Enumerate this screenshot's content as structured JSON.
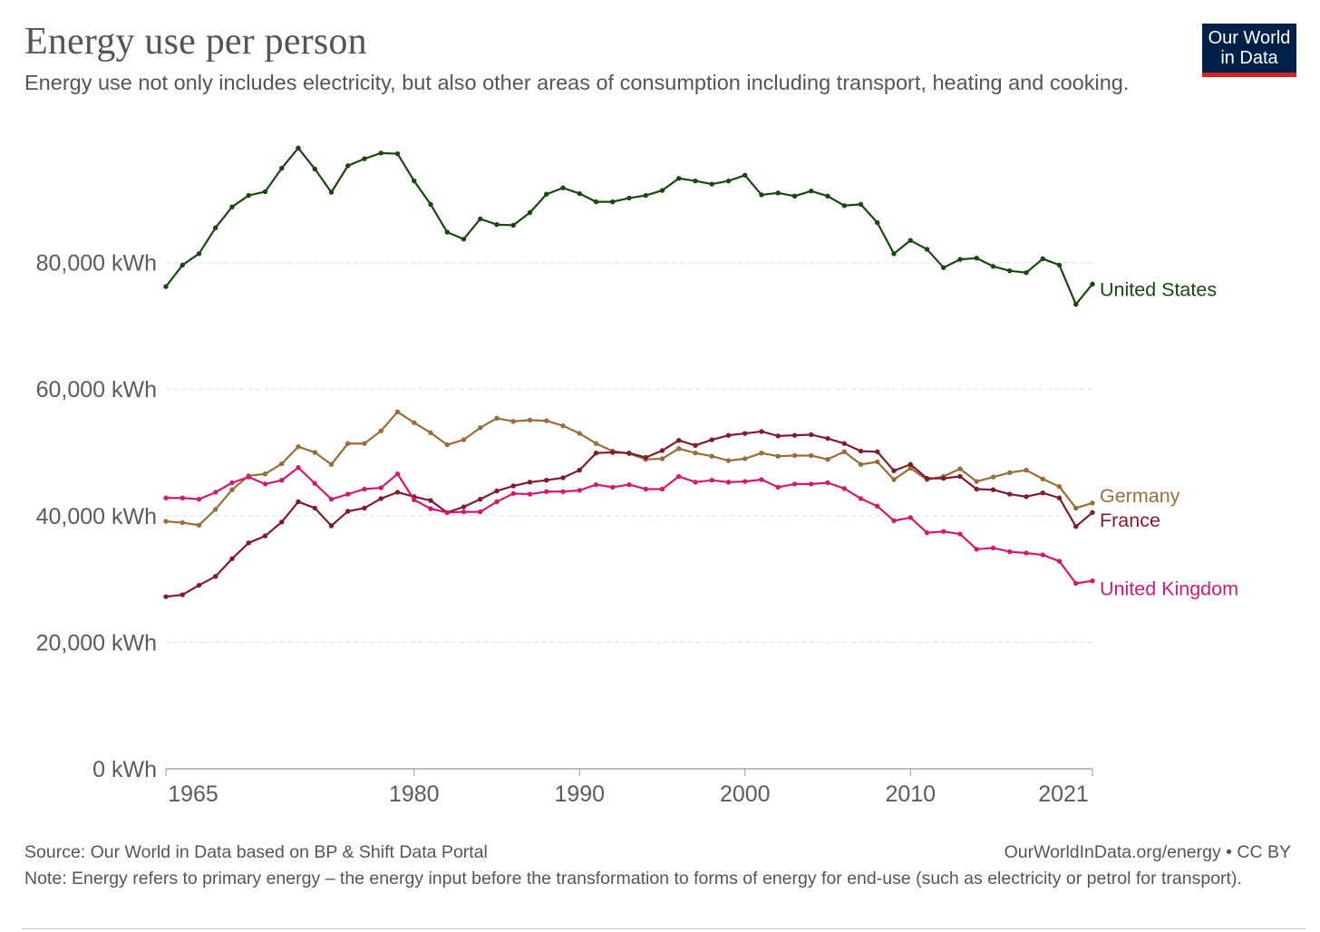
{
  "header": {
    "title": "Energy use per person",
    "subtitle": "Energy use not only includes electricity, but also other areas of consumption including transport, heating and cooking.",
    "logo_line1": "Our World",
    "logo_line2": "in Data"
  },
  "footer": {
    "source": "Source: Our World in Data based on BP & Shift Data Portal",
    "license": "OurWorldInData.org/energy • CC BY",
    "note": "Note: Energy refers to primary energy – the energy input before the transformation to forms of energy for end-use (such as electricity or petrol for transport)."
  },
  "colors": {
    "United States": "#18470f",
    "Germany": "#986d39",
    "France": "#7f1b2c",
    "United Kingdom": "#d01a72",
    "grid": "#dddddd",
    "axis_text": "#5b5b5b"
  },
  "chart_data": {
    "type": "line",
    "title": "Energy use per person",
    "ylim": [
      0,
      100000
    ],
    "xlim": [
      1965,
      2021
    ],
    "y_ticks": [
      0,
      20000,
      40000,
      60000,
      80000
    ],
    "y_tick_labels": [
      "0 kWh",
      "20,000 kWh",
      "40,000 kWh",
      "60,000 kWh",
      "80,000 kWh"
    ],
    "x_ticks": [
      1965,
      1980,
      1990,
      2000,
      2010,
      2021
    ],
    "x_tick_labels": [
      "1965",
      "1980",
      "1990",
      "2000",
      "2010",
      "2021"
    ],
    "grid": "horizontal dashed",
    "legend": "line-end labels",
    "x": [
      1965,
      1966,
      1967,
      1968,
      1969,
      1970,
      1971,
      1972,
      1973,
      1974,
      1975,
      1976,
      1977,
      1978,
      1979,
      1980,
      1981,
      1982,
      1983,
      1984,
      1985,
      1986,
      1987,
      1988,
      1989,
      1990,
      1991,
      1992,
      1993,
      1994,
      1995,
      1996,
      1997,
      1998,
      1999,
      2000,
      2001,
      2002,
      2003,
      2004,
      2005,
      2006,
      2007,
      2008,
      2009,
      2010,
      2011,
      2012,
      2013,
      2014,
      2015,
      2016,
      2017,
      2018,
      2019,
      2020,
      2021
    ],
    "series": [
      {
        "name": "United States",
        "values": [
          76200,
          79600,
          81400,
          85500,
          88800,
          90600,
          91200,
          94900,
          98100,
          94800,
          91100,
          95300,
          96400,
          97300,
          97200,
          92900,
          89200,
          84800,
          83700,
          86900,
          86000,
          85900,
          87900,
          90800,
          91800,
          90900,
          89600,
          89600,
          90200,
          90600,
          91400,
          93300,
          92900,
          92400,
          92900,
          93800,
          90700,
          91000,
          90500,
          91300,
          90500,
          89000,
          89200,
          86300,
          81400,
          83500,
          82100,
          79200,
          80500,
          80700,
          79400,
          78700,
          78400,
          80600,
          79600,
          73400,
          76600
        ]
      },
      {
        "name": "Germany",
        "values": [
          39100,
          38900,
          38500,
          41000,
          44100,
          46300,
          46600,
          48200,
          50900,
          50000,
          48100,
          51400,
          51400,
          53400,
          56400,
          54700,
          53100,
          51200,
          52000,
          53900,
          55400,
          54900,
          55100,
          55000,
          54200,
          53000,
          51400,
          50200,
          49800,
          48900,
          49000,
          50600,
          49900,
          49400,
          48700,
          49000,
          49900,
          49400,
          49500,
          49500,
          48900,
          50100,
          48100,
          48500,
          45700,
          47500,
          45700,
          46200,
          47400,
          45400,
          46100,
          46800,
          47200,
          45800,
          44600,
          41200,
          42000
        ]
      },
      {
        "name": "France",
        "values": [
          27200,
          27500,
          29000,
          30400,
          33200,
          35700,
          36800,
          39000,
          42200,
          41200,
          38400,
          40700,
          41200,
          42700,
          43700,
          43000,
          42400,
          40500,
          41400,
          42600,
          43900,
          44700,
          45300,
          45600,
          46000,
          47200,
          49900,
          50000,
          49900,
          49200,
          50300,
          51900,
          51100,
          52000,
          52700,
          53000,
          53300,
          52600,
          52700,
          52800,
          52200,
          51400,
          50200,
          50100,
          47100,
          48100,
          45900,
          45900,
          46200,
          44200,
          44100,
          43400,
          43000,
          43600,
          42800,
          38300,
          40500
        ]
      },
      {
        "name": "United Kingdom",
        "values": [
          42800,
          42800,
          42600,
          43700,
          45200,
          46100,
          45000,
          45600,
          47600,
          45100,
          42600,
          43400,
          44200,
          44400,
          46600,
          42500,
          41100,
          40500,
          40600,
          40600,
          42200,
          43500,
          43400,
          43800,
          43800,
          44000,
          44900,
          44500,
          44900,
          44200,
          44200,
          46200,
          45300,
          45600,
          45300,
          45400,
          45700,
          44500,
          45000,
          45000,
          45200,
          44300,
          42700,
          41500,
          39200,
          39700,
          37300,
          37500,
          37100,
          34700,
          34900,
          34300,
          34100,
          33800,
          32800,
          29300,
          29700
        ]
      }
    ]
  }
}
